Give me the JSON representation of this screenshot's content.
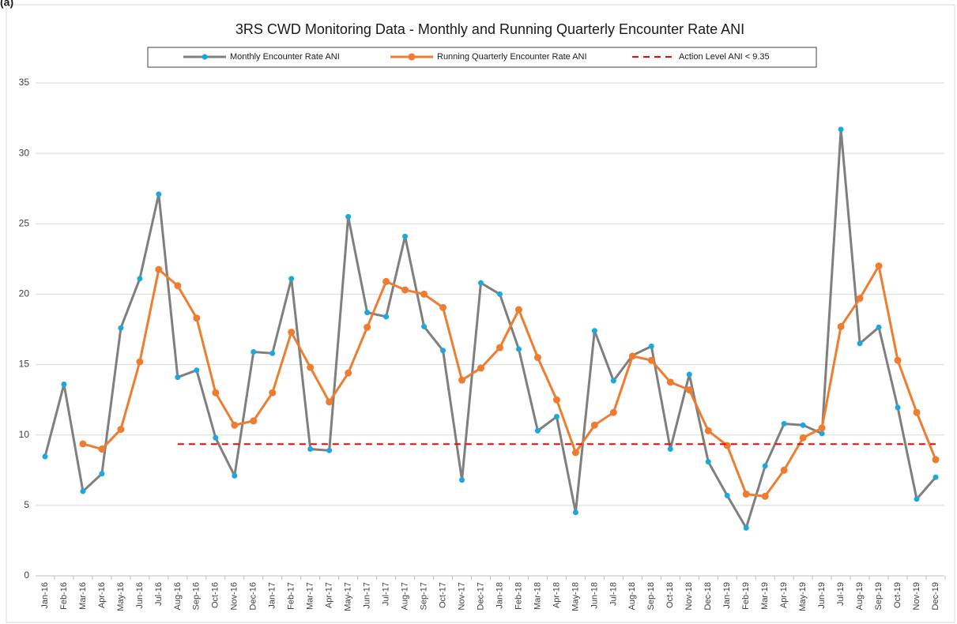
{
  "chart_data": {
    "type": "line",
    "panel_label": "(a)",
    "title": "3RS CWD Monitoring Data - Monthly and Running Quarterly Encounter Rate ANI",
    "categories": [
      "Jan-16",
      "Feb-16",
      "Mar-16",
      "Apr-16",
      "May-16",
      "Jun-16",
      "Jul-16",
      "Aug-16",
      "Sep-16",
      "Oct-16",
      "Nov-16",
      "Dec-16",
      "Jan-17",
      "Feb-17",
      "Mar-17",
      "Apr-17",
      "May-17",
      "Jun-17",
      "Jul-17",
      "Aug-17",
      "Sep-17",
      "Oct-17",
      "Nov-17",
      "Dec-17",
      "Jan-18",
      "Feb-18",
      "Mar-18",
      "Apr-18",
      "May-18",
      "Jun-18",
      "Jul-18",
      "Aug-18",
      "Sep-18",
      "Oct-18",
      "Nov-18",
      "Dec-18",
      "Jan-19",
      "Feb-19",
      "Mar-19",
      "Apr-19",
      "May-19",
      "Jun-19",
      "Jul-19",
      "Aug-19",
      "Sep-19",
      "Oct-19",
      "Nov-19",
      "Dec-19"
    ],
    "series": [
      {
        "name": "Monthly Encounter Rate ANI",
        "color": "#7f7f7f",
        "marker_color": "#1aa8e0",
        "marker": true,
        "dash": false,
        "values": [
          8.47,
          13.6,
          6.0,
          7.25,
          17.6,
          21.1,
          27.1,
          14.1,
          14.6,
          9.8,
          7.1,
          15.9,
          15.8,
          21.1,
          9.0,
          8.9,
          25.5,
          18.7,
          18.4,
          24.1,
          17.7,
          16.0,
          6.8,
          20.8,
          20.0,
          16.1,
          10.3,
          11.3,
          4.5,
          17.4,
          13.85,
          15.65,
          16.3,
          9.0,
          14.3,
          8.1,
          5.7,
          3.4,
          7.8,
          10.8,
          10.7,
          10.1,
          31.7,
          16.5,
          17.65,
          11.95,
          5.45,
          7.0
        ]
      },
      {
        "name": "Running Quarterly Encounter Rate ANI",
        "color": "#ed7d31",
        "marker_color": "#ed7d31",
        "marker": true,
        "dash": false,
        "values": [
          null,
          null,
          9.37,
          9.0,
          10.4,
          15.2,
          21.75,
          20.6,
          18.3,
          13.0,
          10.7,
          11.0,
          13.0,
          17.3,
          14.8,
          12.35,
          14.4,
          17.65,
          20.9,
          20.3,
          20.0,
          19.05,
          13.9,
          14.75,
          16.2,
          18.9,
          15.5,
          12.5,
          8.75,
          10.7,
          11.6,
          15.6,
          15.3,
          13.75,
          13.2,
          10.3,
          9.25,
          5.8,
          5.65,
          7.5,
          9.8,
          10.5,
          17.7,
          19.7,
          22.0,
          15.3,
          11.6,
          8.25
        ]
      },
      {
        "name": "Action Level ANI < 9.35",
        "color": "#ff0000",
        "marker": false,
        "dash": true,
        "values": [
          null,
          null,
          null,
          null,
          null,
          null,
          null,
          9.35,
          9.35,
          9.35,
          9.35,
          9.35,
          9.35,
          9.35,
          9.35,
          9.35,
          9.35,
          9.35,
          9.35,
          9.35,
          9.35,
          9.35,
          9.35,
          9.35,
          9.35,
          9.35,
          9.35,
          9.35,
          9.35,
          9.35,
          9.35,
          9.35,
          9.35,
          9.35,
          9.35,
          9.35,
          9.35,
          9.35,
          9.35,
          9.35,
          9.35,
          9.35,
          9.35,
          9.35,
          9.35,
          9.35,
          9.35,
          9.35
        ]
      }
    ],
    "ylim": [
      0,
      35
    ],
    "yticks": [
      0,
      5,
      10,
      15,
      20,
      25,
      30,
      35
    ],
    "grid": true,
    "legend": "top"
  }
}
